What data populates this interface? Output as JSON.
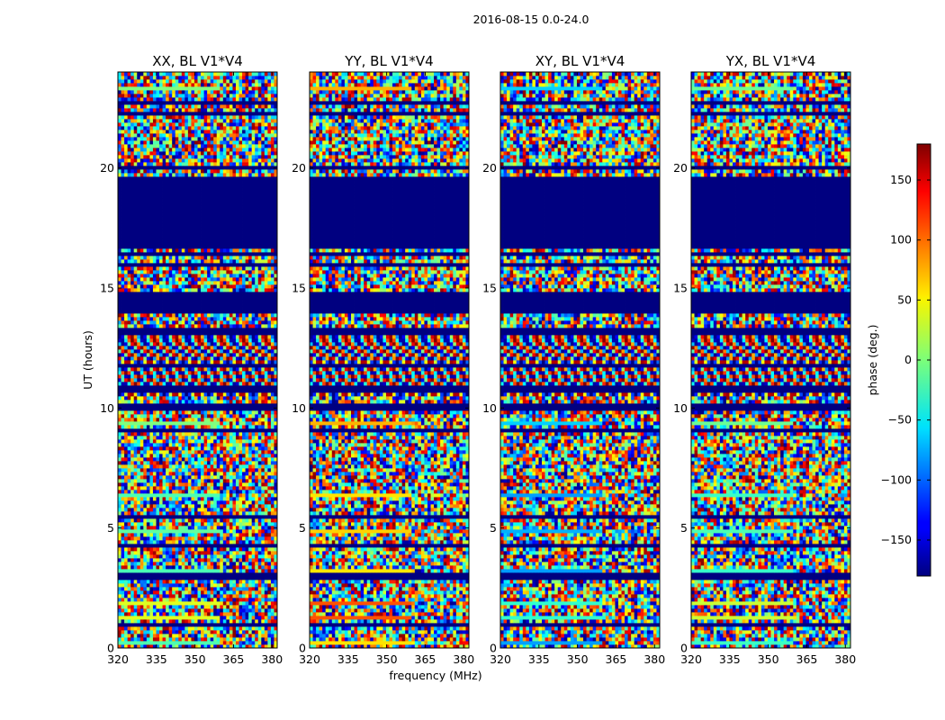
{
  "chart_data": {
    "type": "heatmap",
    "title": "2016-08-15 0.0-24.0",
    "xlabel": "frequency (MHz)",
    "ylabel": "UT (hours)",
    "colorbar_label": "phase (deg.)",
    "colormap": "jet",
    "xlim": [
      320,
      382
    ],
    "ylim": [
      0,
      24
    ],
    "clim": [
      -180,
      180
    ],
    "xticks": [
      320,
      335,
      350,
      365,
      380
    ],
    "yticks": [
      0,
      5,
      10,
      15,
      20
    ],
    "colorbar_ticks": [
      -150,
      -100,
      -50,
      0,
      50,
      100,
      150
    ],
    "panels": [
      {
        "title": "XX, BL V1*V4"
      },
      {
        "title": "YY, BL V1*V4"
      },
      {
        "title": "XY, BL V1*V4"
      },
      {
        "title": "YX, BL V1*V4"
      }
    ]
  }
}
